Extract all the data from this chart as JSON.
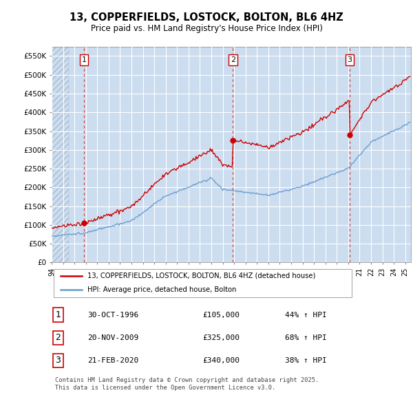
{
  "title": "13, COPPERFIELDS, LOSTOCK, BOLTON, BL6 4HZ",
  "subtitle": "Price paid vs. HM Land Registry's House Price Index (HPI)",
  "background_color": "#dce9f5",
  "plot_bg_color": "#ccddf0",
  "ylabel": "",
  "xlabel": "",
  "ylim": [
    0,
    575000
  ],
  "yticks": [
    0,
    50000,
    100000,
    150000,
    200000,
    250000,
    300000,
    350000,
    400000,
    450000,
    500000,
    550000
  ],
  "ytick_labels": [
    "£0",
    "£50K",
    "£100K",
    "£150K",
    "£200K",
    "£250K",
    "£300K",
    "£350K",
    "£400K",
    "£450K",
    "£500K",
    "£550K"
  ],
  "xmin": 1994.0,
  "xmax": 2025.5,
  "sale_dates": [
    1996.83,
    2009.89,
    2020.13
  ],
  "sale_prices": [
    105000,
    325000,
    340000
  ],
  "sale_labels": [
    "1",
    "2",
    "3"
  ],
  "sale_date_strings": [
    "30-OCT-1996",
    "20-NOV-2009",
    "21-FEB-2020"
  ],
  "sale_price_strings": [
    "£105,000",
    "£325,000",
    "£340,000"
  ],
  "sale_hpi_strings": [
    "44% ↑ HPI",
    "68% ↑ HPI",
    "38% ↑ HPI"
  ],
  "red_line_color": "#cc0000",
  "blue_line_color": "#6699cc",
  "marker_color": "#cc0000",
  "vline_color": "#cc0000",
  "grid_color": "#ffffff",
  "footnote": "Contains HM Land Registry data © Crown copyright and database right 2025.\nThis data is licensed under the Open Government Licence v3.0.",
  "legend_label_red": "13, COPPERFIELDS, LOSTOCK, BOLTON, BL6 4HZ (detached house)",
  "legend_label_blue": "HPI: Average price, detached house, Bolton",
  "hatched_region_end": 1995.5
}
